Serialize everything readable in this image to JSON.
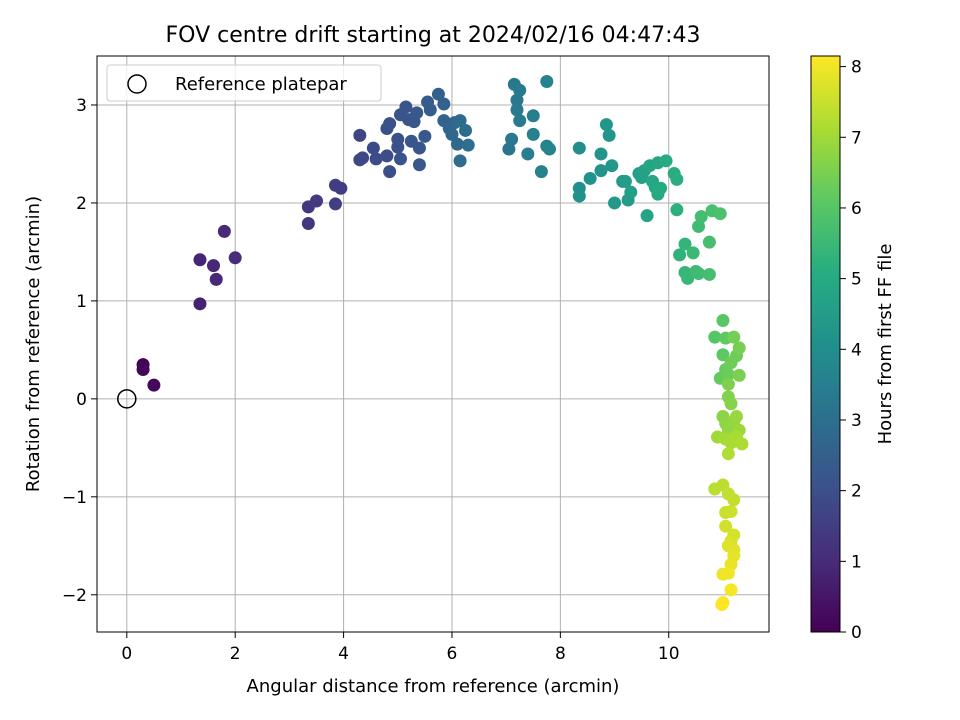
{
  "chart_data": {
    "type": "scatter",
    "title": "FOV centre drift starting at 2024/02/16 04:47:43",
    "xlabel": "Angular distance from reference (arcmin)",
    "ylabel": "Rotation from reference (arcmin)",
    "xlim": [
      -0.55,
      11.85
    ],
    "ylim": [
      -2.38,
      3.5
    ],
    "xticks": [
      0,
      2,
      4,
      6,
      8,
      10
    ],
    "yticks": [
      -2,
      -1,
      0,
      1,
      2,
      3
    ],
    "xtick_labels": [
      "0",
      "2",
      "4",
      "6",
      "8",
      "10"
    ],
    "ytick_labels": [
      "−2",
      "−1",
      "0",
      "1",
      "2",
      "3"
    ],
    "grid": true,
    "legend": {
      "position": "top-left",
      "entries": [
        {
          "label": "Reference platepar",
          "marker": "open-circle"
        }
      ]
    },
    "reference_point": {
      "x": 0,
      "y": 0
    },
    "colorbar": {
      "label": "Hours from first FF file",
      "colormap": "viridis",
      "range": [
        0,
        8.15
      ],
      "ticks": [
        0,
        1,
        2,
        3,
        4,
        5,
        6,
        7,
        8
      ],
      "tick_labels": [
        "0",
        "1",
        "2",
        "3",
        "4",
        "5",
        "6",
        "7",
        "8"
      ]
    },
    "points": [
      [
        0.3,
        0.35,
        0.1
      ],
      [
        0.3,
        0.3,
        0.15
      ],
      [
        0.5,
        0.14,
        0.2
      ],
      [
        1.35,
        0.97,
        0.8
      ],
      [
        1.35,
        1.42,
        0.85
      ],
      [
        1.6,
        1.36,
        0.9
      ],
      [
        1.65,
        1.22,
        0.95
      ],
      [
        1.8,
        1.71,
        1.0
      ],
      [
        2.0,
        1.44,
        1.05
      ],
      [
        3.35,
        1.79,
        1.3
      ],
      [
        3.35,
        1.96,
        1.35
      ],
      [
        3.5,
        2.02,
        1.4
      ],
      [
        3.85,
        2.18,
        1.45
      ],
      [
        3.95,
        2.15,
        1.5
      ],
      [
        3.85,
        1.99,
        1.55
      ],
      [
        4.3,
        2.69,
        1.7
      ],
      [
        4.3,
        2.44,
        1.75
      ],
      [
        4.35,
        2.46,
        1.8
      ],
      [
        4.55,
        2.56,
        1.85
      ],
      [
        4.6,
        2.45,
        1.9
      ],
      [
        4.8,
        2.48,
        1.95
      ],
      [
        4.8,
        2.76,
        2.0
      ],
      [
        4.85,
        2.81,
        2.05
      ],
      [
        4.85,
        2.32,
        2.0
      ],
      [
        5.0,
        2.65,
        2.0
      ],
      [
        5.0,
        2.57,
        2.05
      ],
      [
        5.05,
        2.45,
        2.1
      ],
      [
        5.05,
        2.9,
        2.1
      ],
      [
        5.15,
        2.98,
        2.15
      ],
      [
        5.2,
        2.85,
        2.2
      ],
      [
        5.25,
        2.63,
        2.15
      ],
      [
        5.3,
        2.83,
        2.2
      ],
      [
        5.35,
        2.92,
        2.25
      ],
      [
        5.4,
        2.56,
        2.2
      ],
      [
        5.4,
        2.39,
        2.25
      ],
      [
        5.5,
        2.68,
        2.3
      ],
      [
        5.55,
        3.03,
        2.35
      ],
      [
        5.6,
        2.95,
        2.4
      ],
      [
        5.75,
        3.11,
        2.5
      ],
      [
        5.85,
        3.01,
        2.55
      ],
      [
        5.85,
        2.84,
        2.6
      ],
      [
        5.95,
        2.76,
        2.65
      ],
      [
        6.0,
        2.7,
        2.7
      ],
      [
        6.05,
        2.82,
        2.75
      ],
      [
        6.1,
        2.6,
        2.8
      ],
      [
        6.15,
        2.84,
        2.85
      ],
      [
        6.15,
        2.43,
        2.85
      ],
      [
        6.25,
        2.74,
        2.9
      ],
      [
        6.3,
        2.59,
        2.95
      ],
      [
        7.05,
        2.55,
        3.2
      ],
      [
        7.1,
        2.65,
        3.25
      ],
      [
        7.15,
        3.21,
        3.3
      ],
      [
        7.2,
        3.05,
        3.3
      ],
      [
        7.2,
        2.95,
        3.35
      ],
      [
        7.25,
        2.84,
        3.35
      ],
      [
        7.25,
        3.15,
        3.4
      ],
      [
        7.4,
        2.5,
        3.45
      ],
      [
        7.5,
        2.89,
        3.5
      ],
      [
        7.5,
        2.7,
        3.55
      ],
      [
        7.65,
        2.32,
        3.6
      ],
      [
        7.75,
        2.58,
        3.65
      ],
      [
        7.75,
        3.24,
        3.6
      ],
      [
        7.8,
        2.55,
        3.7
      ],
      [
        8.35,
        2.56,
        4.0
      ],
      [
        8.35,
        2.15,
        4.05
      ],
      [
        8.35,
        2.07,
        4.1
      ],
      [
        8.55,
        2.25,
        4.15
      ],
      [
        8.75,
        2.5,
        4.2
      ],
      [
        8.75,
        2.33,
        4.25
      ],
      [
        8.85,
        2.8,
        4.3
      ],
      [
        8.9,
        2.69,
        4.3
      ],
      [
        8.95,
        2.38,
        4.35
      ],
      [
        9.0,
        2.0,
        4.4
      ],
      [
        9.15,
        2.22,
        4.45
      ],
      [
        9.2,
        2.22,
        4.5
      ],
      [
        9.25,
        2.03,
        4.5
      ],
      [
        9.3,
        2.11,
        4.55
      ],
      [
        9.45,
        2.3,
        4.6
      ],
      [
        9.5,
        2.26,
        4.65
      ],
      [
        9.55,
        2.33,
        4.7
      ],
      [
        9.6,
        1.87,
        4.75
      ],
      [
        9.65,
        2.38,
        4.8
      ],
      [
        9.7,
        2.22,
        4.85
      ],
      [
        9.75,
        2.16,
        4.85
      ],
      [
        9.8,
        2.41,
        4.9
      ],
      [
        9.8,
        2.09,
        4.95
      ],
      [
        9.85,
        2.15,
        5.0
      ],
      [
        9.95,
        2.43,
        5.05
      ],
      [
        10.1,
        2.3,
        5.1
      ],
      [
        10.15,
        2.24,
        5.15
      ],
      [
        10.15,
        1.93,
        5.2
      ],
      [
        10.2,
        1.47,
        5.3
      ],
      [
        10.3,
        1.58,
        5.35
      ],
      [
        10.3,
        1.29,
        5.4
      ],
      [
        10.35,
        1.23,
        5.45
      ],
      [
        10.45,
        1.49,
        5.5
      ],
      [
        10.5,
        1.3,
        5.55
      ],
      [
        10.55,
        1.28,
        5.6
      ],
      [
        10.55,
        1.76,
        5.6
      ],
      [
        10.6,
        1.86,
        5.65
      ],
      [
        10.75,
        1.27,
        5.7
      ],
      [
        10.75,
        1.6,
        5.7
      ],
      [
        10.8,
        1.92,
        5.75
      ],
      [
        10.95,
        1.89,
        5.8
      ],
      [
        10.85,
        0.63,
        6.0
      ],
      [
        11.0,
        0.8,
        6.05
      ],
      [
        11.0,
        0.45,
        6.1
      ],
      [
        11.05,
        0.62,
        6.15
      ],
      [
        10.95,
        0.21,
        6.2
      ],
      [
        11.05,
        0.3,
        6.25
      ],
      [
        11.1,
        0.25,
        6.3
      ],
      [
        11.15,
        0.37,
        6.35
      ],
      [
        11.25,
        0.44,
        6.35
      ],
      [
        11.2,
        0.63,
        6.4
      ],
      [
        11.3,
        0.52,
        6.45
      ],
      [
        11.3,
        0.24,
        6.5
      ],
      [
        11.1,
        0.15,
        6.55
      ],
      [
        11.1,
        0.02,
        6.6
      ],
      [
        11.15,
        -0.05,
        6.65
      ],
      [
        11.0,
        -0.18,
        6.7
      ],
      [
        11.05,
        -0.25,
        6.75
      ],
      [
        11.1,
        -0.33,
        6.8
      ],
      [
        11.2,
        -0.23,
        6.85
      ],
      [
        11.25,
        -0.18,
        6.9
      ],
      [
        11.3,
        -0.32,
        6.95
      ],
      [
        10.9,
        -0.39,
        7.0
      ],
      [
        11.05,
        -0.41,
        7.05
      ],
      [
        11.15,
        -0.45,
        7.1
      ],
      [
        11.25,
        -0.38,
        7.1
      ],
      [
        11.35,
        -0.46,
        7.15
      ],
      [
        11.1,
        -0.56,
        7.2
      ],
      [
        10.85,
        -0.92,
        7.3
      ],
      [
        11.0,
        -0.88,
        7.35
      ],
      [
        11.1,
        -0.97,
        7.4
      ],
      [
        11.2,
        -1.03,
        7.45
      ],
      [
        11.05,
        -1.16,
        7.5
      ],
      [
        11.15,
        -1.15,
        7.55
      ],
      [
        11.05,
        -1.3,
        7.6
      ],
      [
        11.2,
        -1.39,
        7.65
      ],
      [
        11.15,
        -1.45,
        7.7
      ],
      [
        11.1,
        -1.5,
        7.75
      ],
      [
        11.2,
        -1.54,
        7.8
      ],
      [
        11.2,
        -1.6,
        7.85
      ],
      [
        11.15,
        -1.69,
        7.9
      ],
      [
        11.0,
        -1.79,
        7.95
      ],
      [
        11.1,
        -1.78,
        8.0
      ],
      [
        11.15,
        -1.95,
        8.05
      ],
      [
        11.0,
        -2.08,
        8.1
      ],
      [
        10.98,
        -2.1,
        8.15
      ]
    ]
  }
}
